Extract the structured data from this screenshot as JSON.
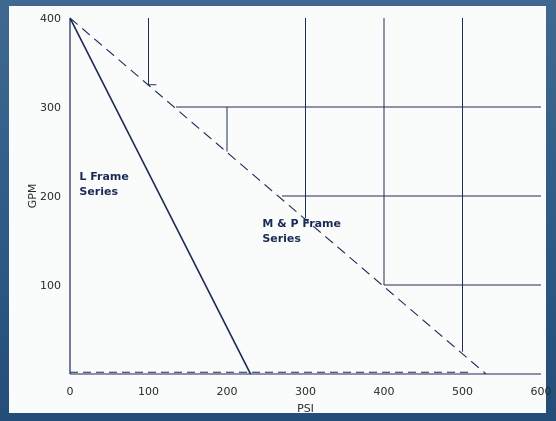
{
  "chart_data": {
    "type": "line",
    "title": "",
    "xlabel": "PSI",
    "ylabel": "GPM",
    "xlim": [
      0,
      600
    ],
    "ylim": [
      0,
      400
    ],
    "x_ticks": [
      "0",
      "100",
      "200",
      "300",
      "400",
      "500",
      "600"
    ],
    "y_ticks": [
      "100",
      "200",
      "300",
      "400"
    ],
    "series": [
      {
        "name": "L Frame Series",
        "style": "solid",
        "points": [
          [
            0,
            400
          ],
          [
            230,
            0
          ]
        ]
      },
      {
        "name": "M & P Frame Series",
        "style": "dashed",
        "points": [
          [
            0,
            400
          ],
          [
            530,
            0
          ]
        ]
      }
    ],
    "baseline": {
      "style": "dashed",
      "points": [
        [
          0,
          2
        ],
        [
          510,
          2
        ]
      ]
    },
    "grid_segments": [
      {
        "orient": "v",
        "at": 100,
        "from": 325,
        "to": 400
      },
      {
        "orient": "h",
        "at": 325,
        "from": 100,
        "to": 110
      },
      {
        "orient": "v",
        "at": 200,
        "from": 250,
        "to": 300
      },
      {
        "orient": "h",
        "at": 300,
        "from": 135,
        "to": 600
      },
      {
        "orient": "v",
        "at": 300,
        "from": 175,
        "to": 400
      },
      {
        "orient": "h",
        "at": 200,
        "from": 270,
        "to": 600
      },
      {
        "orient": "v",
        "at": 400,
        "from": 100,
        "to": 400
      },
      {
        "orient": "h",
        "at": 100,
        "from": 400,
        "to": 600
      },
      {
        "orient": "v",
        "at": 500,
        "from": 25,
        "to": 400
      }
    ],
    "annotations": [
      {
        "lines": [
          "L Frame",
          "Series"
        ],
        "x": 12,
        "y": 218
      },
      {
        "lines": [
          "M & P Frame",
          "Series"
        ],
        "x": 245,
        "y": 165
      }
    ],
    "grid": false,
    "legend": "none"
  },
  "colors": {
    "frame": "#2e5a86",
    "panel": "#fafbfb",
    "ink": "#1a2a55",
    "grid": "#1f2f55"
  }
}
